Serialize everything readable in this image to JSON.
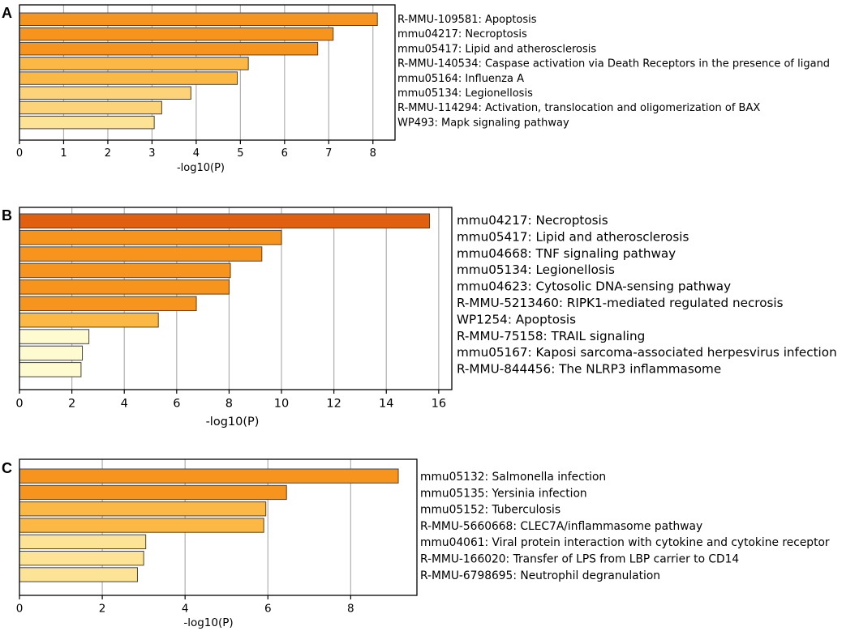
{
  "chart_data": [
    {
      "type": "bar",
      "orientation": "horizontal",
      "panel_label": "A",
      "xlabel": "-log10(P)",
      "xlim": [
        0,
        8.5
      ],
      "xticks": [
        0,
        1,
        2,
        3,
        4,
        5,
        6,
        7,
        8
      ],
      "grid": true,
      "categories": [
        "R-MMU-109581: Apoptosis",
        "mmu04217: Necroptosis",
        "mmu05417: Lipid and atherosclerosis",
        "R-MMU-140534: Caspase activation via Death Receptors in the presence of ligand",
        "mmu05164: Influenza A",
        "mmu05134: Legionellosis",
        "R-MMU-114294: Activation, translocation and oligomerization of BAX",
        "WP493: Mapk signaling pathway"
      ],
      "values": [
        8.1,
        7.1,
        6.75,
        5.18,
        4.93,
        3.88,
        3.22,
        3.05
      ],
      "colors": [
        "#f7941d",
        "#f7941d",
        "#f7941d",
        "#fbb845",
        "#fbb845",
        "#fdd37a",
        "#fdd37a",
        "#fde396"
      ]
    },
    {
      "type": "bar",
      "orientation": "horizontal",
      "panel_label": "B",
      "xlabel": "-log10(P)",
      "xlim": [
        0,
        16.5
      ],
      "xticks": [
        0,
        2,
        4,
        6,
        8,
        10,
        12,
        14,
        16
      ],
      "grid": true,
      "categories": [
        "mmu04217: Necroptosis",
        "mmu05417: Lipid and atherosclerosis",
        "mmu04668: TNF signaling pathway",
        "mmu05134: Legionellosis",
        "mmu04623: Cytosolic DNA-sensing pathway",
        "R-MMU-5213460: RIPK1-mediated regulated necrosis",
        "WP1254: Apoptosis",
        "R-MMU-75158: TRAIL  signaling",
        "mmu05167: Kaposi sarcoma-associated herpesvirus infection",
        "R-MMU-844456: The NLRP3 inflammasome"
      ],
      "values": [
        15.65,
        10.0,
        9.25,
        8.05,
        8.0,
        6.75,
        5.3,
        2.65,
        2.4,
        2.35
      ],
      "colors": [
        "#e06010",
        "#f7941d",
        "#f7941d",
        "#f7941d",
        "#f7941d",
        "#f7941d",
        "#fbb845",
        "#fefbd0",
        "#fefbd0",
        "#fefbd0"
      ]
    },
    {
      "type": "bar",
      "orientation": "horizontal",
      "panel_label": "C",
      "xlabel": "-log10(P)",
      "xlim": [
        0,
        9.6
      ],
      "xticks": [
        0,
        2,
        4,
        6,
        8
      ],
      "grid": true,
      "categories": [
        "mmu05132: Salmonella infection",
        "mmu05135: Yersinia infection",
        "mmu05152: Tuberculosis",
        "R-MMU-5660668: CLEC7A/inflammasome pathway",
        "mmu04061: Viral protein interaction with cytokine and cytokine receptor",
        "R-MMU-166020: Transfer of LPS from LBP carrier to CD14",
        "R-MMU-6798695: Neutrophil degranulation"
      ],
      "values": [
        9.15,
        6.45,
        5.95,
        5.9,
        3.05,
        3.0,
        2.85
      ],
      "colors": [
        "#f7941d",
        "#f7941d",
        "#fbb845",
        "#fbb845",
        "#fde396",
        "#fde396",
        "#fde396"
      ]
    }
  ]
}
